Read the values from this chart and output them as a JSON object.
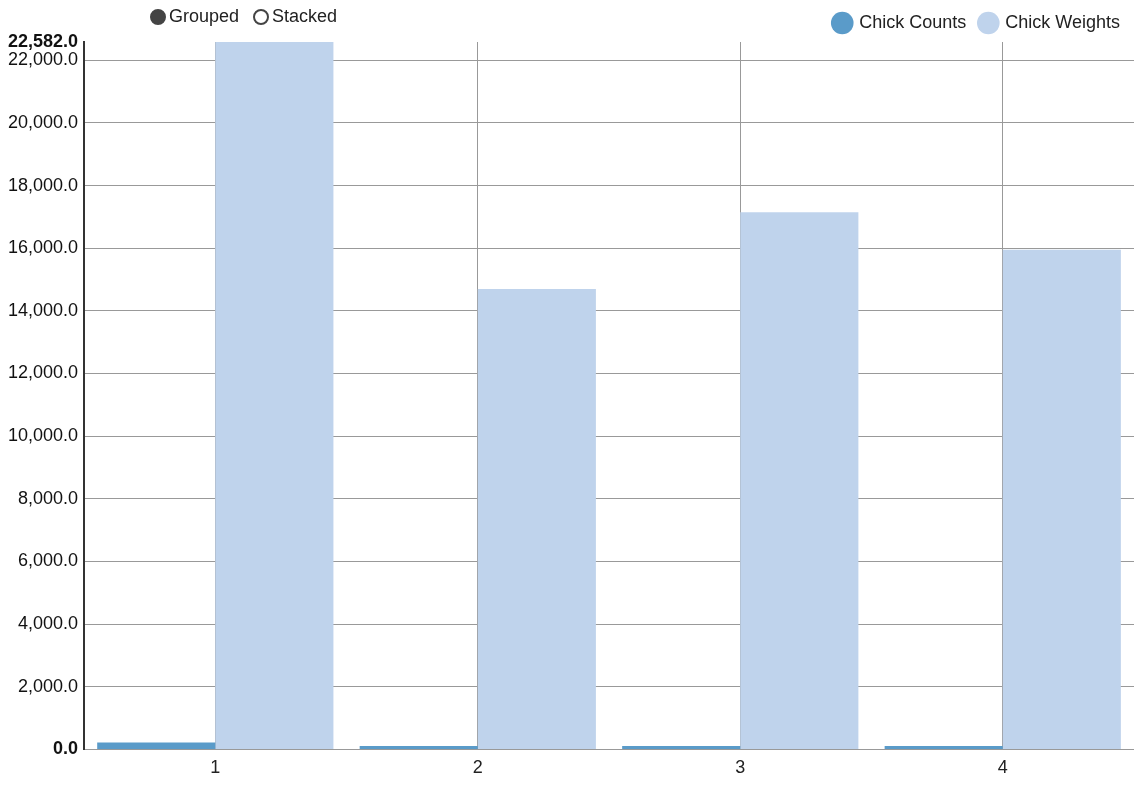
{
  "chart_data": {
    "type": "bar",
    "categories": [
      "1",
      "2",
      "3",
      "4"
    ],
    "series": [
      {
        "name": "Chick Counts",
        "color": "#5a9bc9",
        "values": [
          220,
          110,
          110,
          110
        ]
      },
      {
        "name": "Chick Weights",
        "color": "#bfd3ec",
        "values": [
          22582,
          14700,
          17150,
          15950
        ]
      }
    ],
    "ylim": [
      0,
      22582
    ],
    "yticks": [
      {
        "value": 0,
        "label": "0.0"
      },
      {
        "value": 2000,
        "label": "2,000.0"
      },
      {
        "value": 4000,
        "label": "4,000.0"
      },
      {
        "value": 6000,
        "label": "6,000.0"
      },
      {
        "value": 8000,
        "label": "8,000.0"
      },
      {
        "value": 10000,
        "label": "10,000.0"
      },
      {
        "value": 12000,
        "label": "12,000.0"
      },
      {
        "value": 14000,
        "label": "14,000.0"
      },
      {
        "value": 16000,
        "label": "16,000.0"
      },
      {
        "value": 18000,
        "label": "18,000.0"
      },
      {
        "value": 20000,
        "label": "20,000.0"
      },
      {
        "value": 22000,
        "label": "22,000.0"
      },
      {
        "value": 22582,
        "label": "22,582.0"
      }
    ],
    "grid": true,
    "legend": "top right",
    "stacked": false,
    "annotations": [
      "Grouped",
      "Stacked"
    ]
  }
}
